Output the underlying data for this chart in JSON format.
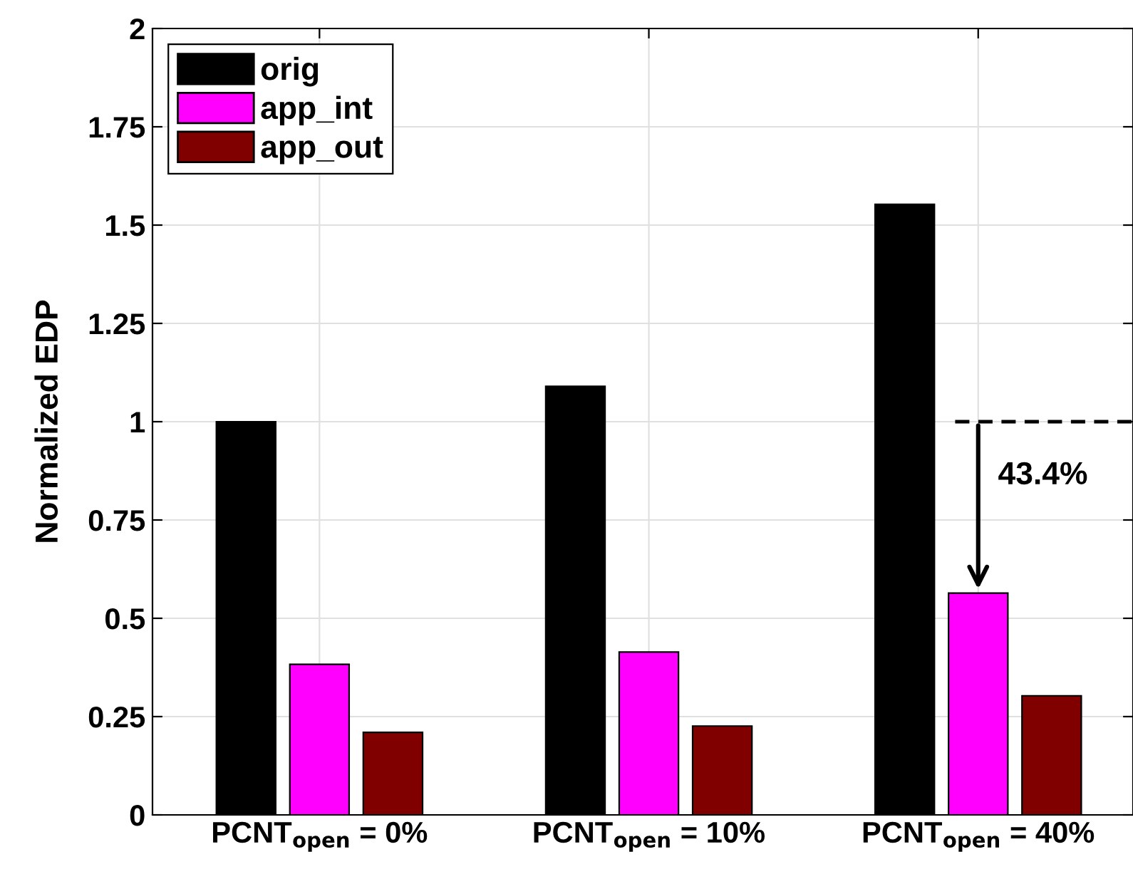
{
  "chart_data": {
    "type": "bar",
    "ylabel": "Normalized EDP",
    "categories": [
      "PCNT$_{open}$ = 0%",
      "PCNT$_{open}$ = 10%",
      "PCNT$_{open}$ = 40%"
    ],
    "series": [
      {
        "name": "orig",
        "color": "#000000",
        "values": [
          1.0,
          1.09,
          1.553
        ]
      },
      {
        "name": "app_int",
        "color": "#ff00ff",
        "values": [
          0.383,
          0.414,
          0.564
        ]
      },
      {
        "name": "app_out",
        "color": "#800000",
        "values": [
          0.21,
          0.226,
          0.303
        ]
      }
    ],
    "ylim": [
      0,
      2
    ],
    "yticks": [
      0,
      0.25,
      0.5,
      0.75,
      1,
      1.25,
      1.5,
      1.75,
      2
    ],
    "ref_lines": [
      {
        "axis": "y",
        "value": 1,
        "color": "#000000",
        "line_style": "dashed"
      }
    ],
    "annotations": [
      {
        "text": "43.4%",
        "x": "PCNT$_{open}$ = 40%",
        "y": 1
      }
    ],
    "grid": true,
    "legend": "top left"
  }
}
